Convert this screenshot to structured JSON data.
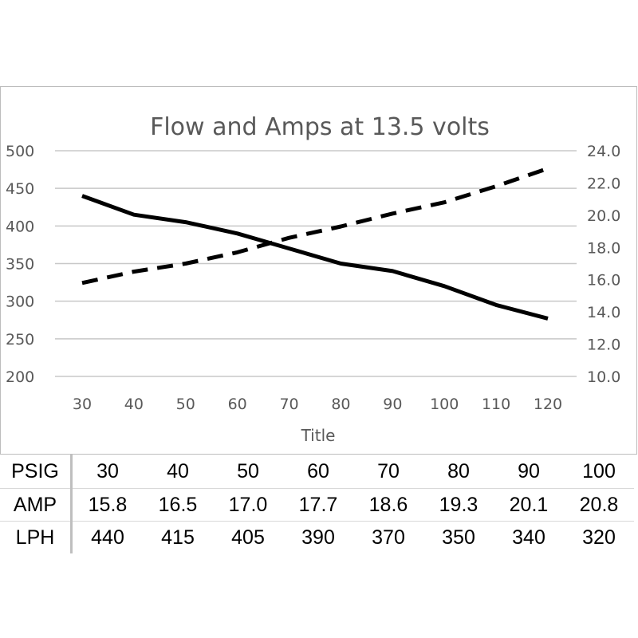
{
  "chart_data": {
    "type": "line",
    "title": "Flow and Amps at 13.5 volts",
    "xlabel": "Title",
    "categories": [
      30,
      40,
      50,
      60,
      70,
      80,
      90,
      100,
      110,
      120
    ],
    "y_left": {
      "min": 200,
      "max": 500,
      "ticks": [
        "500",
        "450",
        "400",
        "350",
        "300",
        "250",
        "200"
      ]
    },
    "y_right": {
      "min": 10.0,
      "max": 24.0,
      "ticks": [
        "24.0",
        "22.0",
        "20.0",
        "18.0",
        "16.0",
        "14.0",
        "12.0",
        "10.0"
      ]
    },
    "grid": true,
    "series": [
      {
        "axis": "left",
        "style": "solid",
        "color": "#000000",
        "values": [
          440,
          415,
          405,
          390,
          370,
          350,
          340,
          320,
          295,
          277
        ]
      },
      {
        "axis": "right",
        "style": "dashed",
        "color": "#000000",
        "values": [
          15.8,
          16.5,
          17.0,
          17.7,
          18.6,
          19.3,
          20.1,
          20.8,
          21.8,
          22.9
        ]
      }
    ]
  },
  "table": {
    "rows": [
      {
        "label": "PSIG",
        "cells": [
          "30",
          "40",
          "50",
          "60",
          "70",
          "80",
          "90",
          "100"
        ]
      },
      {
        "label": "AMP",
        "cells": [
          "15.8",
          "16.5",
          "17.0",
          "17.7",
          "18.6",
          "19.3",
          "20.1",
          "20.8"
        ]
      },
      {
        "label": "LPH",
        "cells": [
          "440",
          "415",
          "405",
          "390",
          "370",
          "350",
          "340",
          "320"
        ]
      }
    ]
  }
}
